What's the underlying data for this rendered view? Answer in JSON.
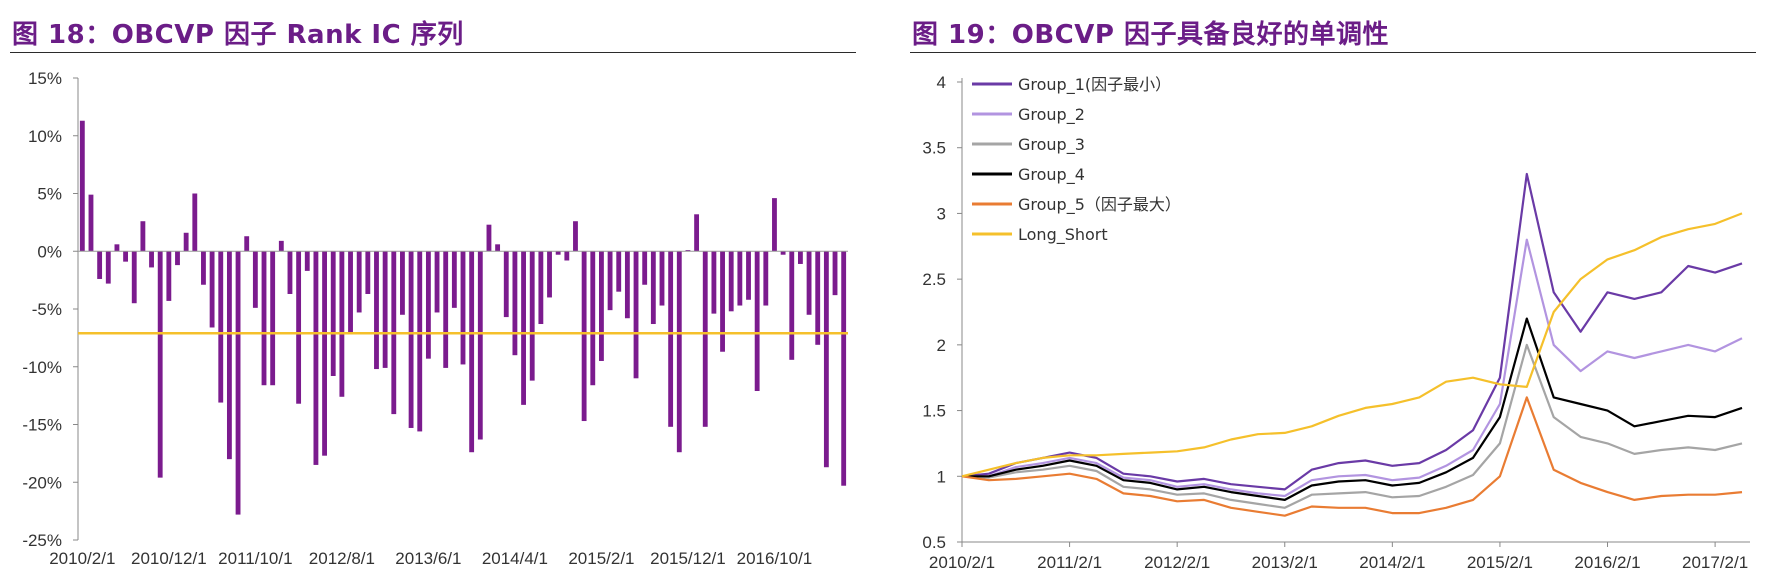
{
  "charts": [
    {
      "title": "图 18：OBCVP 因子 Rank IC 序列",
      "chart_data": {
        "type": "bar",
        "title": "",
        "xlabel": "",
        "ylabel": "",
        "ylim": [
          -25,
          15
        ],
        "yticks": [
          15,
          10,
          5,
          0,
          -5,
          -10,
          -15,
          -20,
          -25
        ],
        "ytick_labels": [
          "15%",
          "10%",
          "5%",
          "0%",
          "-5%",
          "-10%",
          "-15%",
          "-20%",
          "-25%"
        ],
        "xtick_labels": [
          "2010/2/1",
          "2010/12/1",
          "2011/10/1",
          "2012/8/1",
          "2013/6/1",
          "2014/4/1",
          "2015/2/1",
          "2015/12/1",
          "2016/10/1"
        ],
        "xtick_every": 10,
        "values": [
          11.3,
          4.9,
          -2.4,
          -2.8,
          0.6,
          -0.9,
          -4.5,
          2.6,
          -1.4,
          -19.6,
          -4.3,
          -1.2,
          1.6,
          5.0,
          -2.9,
          -6.6,
          -13.1,
          -18.0,
          -22.8,
          1.3,
          -4.9,
          -11.6,
          -11.6,
          0.9,
          -3.7,
          -13.2,
          -1.7,
          -18.5,
          -17.7,
          -10.8,
          -12.6,
          -7.0,
          -5.3,
          -3.7,
          -10.2,
          -10.1,
          -14.1,
          -5.5,
          -15.3,
          -15.6,
          -9.3,
          -5.3,
          -10.1,
          -4.9,
          -9.8,
          -17.4,
          -16.3,
          2.3,
          0.6,
          -5.7,
          -9.0,
          -13.3,
          -11.2,
          -6.3,
          -4.0,
          -0.3,
          -0.8,
          2.6,
          -14.7,
          -11.6,
          -9.5,
          -5.1,
          -3.5,
          -5.8,
          -11.0,
          -2.9,
          -6.3,
          -4.7,
          -15.2,
          -17.4,
          0.1,
          3.2,
          -15.2,
          -5.4,
          -8.7,
          -5.2,
          -4.7,
          -4.2,
          -12.1,
          -4.7,
          4.6,
          -0.3,
          -9.4,
          -1.1,
          -5.5,
          -8.1,
          -18.7,
          -3.8,
          -20.3
        ],
        "bar_color": "#7b1b8e",
        "mean_line": {
          "value": -7.1,
          "color": "#f5c02b"
        }
      }
    },
    {
      "title": "图 19：OBCVP 因子具备良好的单调性",
      "chart_data": {
        "type": "line",
        "title": "",
        "xlabel": "",
        "ylabel": "",
        "ylim": [
          0.5,
          4
        ],
        "yticks": [
          4,
          3.5,
          3,
          2.5,
          2,
          1.5,
          1,
          0.5
        ],
        "ytick_labels": [
          "4",
          "3.5",
          "3",
          "2.5",
          "2",
          "1.5",
          "1",
          "0.5"
        ],
        "x_dates": [
          "2010/2/1",
          "2010/5/1",
          "2010/8/1",
          "2010/11/1",
          "2011/2/1",
          "2011/5/1",
          "2011/8/1",
          "2011/11/1",
          "2012/2/1",
          "2012/5/1",
          "2012/8/1",
          "2012/11/1",
          "2013/2/1",
          "2013/5/1",
          "2013/8/1",
          "2013/11/1",
          "2014/2/1",
          "2014/5/1",
          "2014/8/1",
          "2014/11/1",
          "2015/2/1",
          "2015/5/1",
          "2015/8/1",
          "2015/11/1",
          "2016/2/1",
          "2016/5/1",
          "2016/8/1",
          "2016/11/1",
          "2017/2/1",
          "2017/5/1"
        ],
        "xtick_labels": [
          "2010/2/1",
          "2011/2/1",
          "2012/2/1",
          "2013/2/1",
          "2014/2/1",
          "2015/2/1",
          "2016/2/1",
          "2017/2/1"
        ],
        "xtick_every": 4,
        "legend_position": "top-left",
        "series": [
          {
            "name": "Group_1(因子最小）",
            "color": "#6a3aa6",
            "values": [
              1.0,
              1.02,
              1.1,
              1.14,
              1.18,
              1.14,
              1.02,
              1.0,
              0.96,
              0.98,
              0.94,
              0.92,
              0.9,
              1.05,
              1.1,
              1.12,
              1.08,
              1.1,
              1.2,
              1.35,
              1.75,
              3.3,
              2.4,
              2.1,
              2.4,
              2.35,
              2.4,
              2.6,
              2.55,
              2.62
            ]
          },
          {
            "name": "Group_2",
            "color": "#b294e0",
            "values": [
              1.0,
              1.0,
              1.07,
              1.1,
              1.14,
              1.1,
              0.99,
              0.97,
              0.92,
              0.94,
              0.9,
              0.87,
              0.85,
              0.97,
              1.0,
              1.01,
              0.97,
              0.99,
              1.08,
              1.2,
              1.55,
              2.8,
              2.0,
              1.8,
              1.95,
              1.9,
              1.95,
              2.0,
              1.95,
              2.05
            ]
          },
          {
            "name": "Group_3",
            "color": "#a5a5a5",
            "values": [
              1.0,
              0.99,
              1.03,
              1.05,
              1.08,
              1.04,
              0.92,
              0.9,
              0.86,
              0.87,
              0.82,
              0.79,
              0.76,
              0.86,
              0.87,
              0.88,
              0.84,
              0.85,
              0.92,
              1.01,
              1.25,
              2.0,
              1.45,
              1.3,
              1.25,
              1.17,
              1.2,
              1.22,
              1.2,
              1.25
            ]
          },
          {
            "name": "Group_4",
            "color": "#000000",
            "values": [
              1.0,
              1.0,
              1.05,
              1.08,
              1.12,
              1.08,
              0.97,
              0.95,
              0.9,
              0.92,
              0.88,
              0.85,
              0.82,
              0.93,
              0.96,
              0.97,
              0.93,
              0.95,
              1.03,
              1.14,
              1.45,
              2.2,
              1.6,
              1.55,
              1.5,
              1.38,
              1.42,
              1.46,
              1.45,
              1.52
            ]
          },
          {
            "name": "Group_5（因子最大）",
            "color": "#e97c33",
            "values": [
              1.0,
              0.97,
              0.98,
              1.0,
              1.02,
              0.98,
              0.87,
              0.85,
              0.81,
              0.82,
              0.76,
              0.73,
              0.7,
              0.77,
              0.76,
              0.76,
              0.72,
              0.72,
              0.76,
              0.82,
              1.0,
              1.6,
              1.05,
              0.95,
              0.88,
              0.82,
              0.85,
              0.86,
              0.86,
              0.88
            ]
          },
          {
            "name": "Long_Short",
            "color": "#f5c02b",
            "values": [
              1.0,
              1.05,
              1.1,
              1.14,
              1.16,
              1.16,
              1.17,
              1.18,
              1.19,
              1.22,
              1.28,
              1.32,
              1.33,
              1.38,
              1.46,
              1.52,
              1.55,
              1.6,
              1.72,
              1.75,
              1.7,
              1.68,
              2.25,
              2.5,
              2.65,
              2.72,
              2.82,
              2.88,
              2.92,
              3.0
            ]
          }
        ]
      }
    }
  ]
}
